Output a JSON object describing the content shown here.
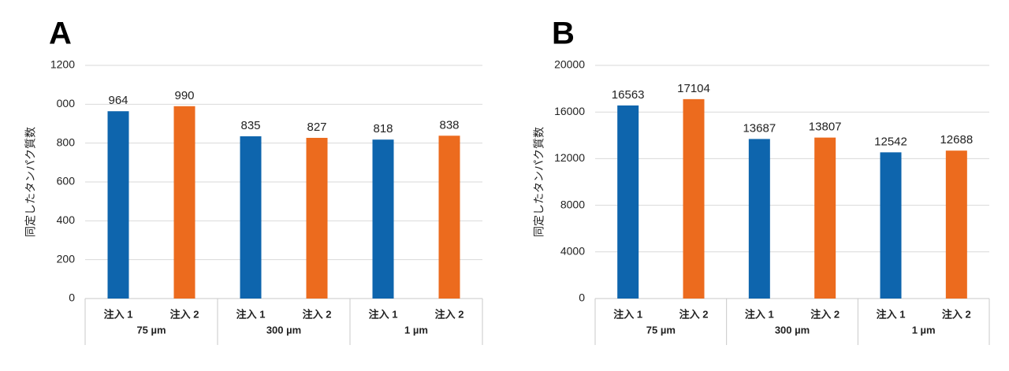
{
  "chart_data": [
    {
      "type": "bar",
      "panel": "A",
      "ylabel": "同定したタンパク質数",
      "categories": [
        "注入 1",
        "注入 2",
        "注入 1",
        "注入 2",
        "注入 1",
        "注入 2"
      ],
      "groups": [
        "75 µm",
        "300 µm",
        "1 µm"
      ],
      "values": [
        964,
        990,
        835,
        827,
        818,
        838
      ],
      "colors": [
        "#0e65ad",
        "#ec6b1e",
        "#0e65ad",
        "#ec6b1e",
        "#0e65ad",
        "#ec6b1e"
      ],
      "ylim": [
        0,
        1200
      ],
      "yticks": [
        0,
        200,
        400,
        600,
        800,
        {
          "value": 1000,
          "label": "000"
        },
        1200
      ],
      "grid": true
    },
    {
      "type": "bar",
      "panel": "B",
      "ylabel": "同定したタンパク質数",
      "categories": [
        "注入 1",
        "注入 2",
        "注入 1",
        "注入 2",
        "注入 1",
        "注入 2"
      ],
      "groups": [
        "75 µm",
        "300 µm",
        "1 µm"
      ],
      "values": [
        16563,
        17104,
        13687,
        13807,
        12542,
        12688
      ],
      "colors": [
        "#0e65ad",
        "#ec6b1e",
        "#0e65ad",
        "#ec6b1e",
        "#0e65ad",
        "#ec6b1e"
      ],
      "ylim": [
        0,
        20000
      ],
      "yticks": [
        0,
        4000,
        8000,
        12000,
        16000,
        20000
      ],
      "grid": true
    }
  ]
}
